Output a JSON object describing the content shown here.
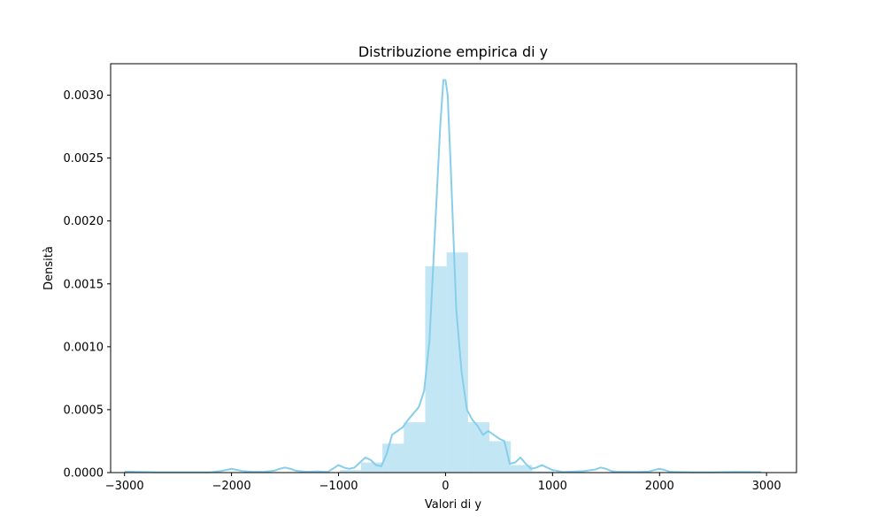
{
  "chart_data": {
    "type": "histogram",
    "title": "Distribuzione empirica di y",
    "xlabel": "Valori di y",
    "ylabel": "Densità",
    "xlim": [
      -3130,
      3280
    ],
    "ylim": [
      0,
      0.00325
    ],
    "x_ticks": [
      -3000,
      -2000,
      -1000,
      0,
      1000,
      2000,
      3000
    ],
    "x_tick_labels": [
      "−3000",
      "−2000",
      "−1000",
      "0",
      "1000",
      "2000",
      "3000"
    ],
    "y_ticks": [
      0,
      0.0005,
      0.001,
      0.0015,
      0.002,
      0.0025,
      0.003
    ],
    "y_tick_labels": [
      "0.0000",
      "0.0005",
      "0.0010",
      "0.0015",
      "0.0020",
      "0.0025",
      "0.0030"
    ],
    "grid": false,
    "histogram": {
      "color": "#87ceeb",
      "bin_edges": [
        -2990,
        -2790,
        -2590,
        -2390,
        -2190,
        -1990,
        -1790,
        -1590,
        -1390,
        -1190,
        -990,
        -790,
        -590,
        -390,
        -190,
        10,
        210,
        410,
        610,
        810,
        1010,
        1210,
        1410,
        1610,
        1810,
        2010,
        2210,
        2410,
        2610,
        2810,
        2990
      ],
      "values": [
        0,
        0,
        0,
        0,
        0,
        0,
        0,
        0,
        0,
        0,
        2e-05,
        8e-05,
        0.00023,
        0.0004,
        0.00164,
        0.00175,
        0.0004,
        0.00025,
        6e-05,
        1e-05,
        0,
        0,
        0,
        0,
        0,
        0,
        0,
        0,
        0,
        0
      ]
    },
    "kde": {
      "color": "#87ceeb",
      "x": [
        -3000,
        -2700,
        -2500,
        -2200,
        -2100,
        -2000,
        -1900,
        -1800,
        -1700,
        -1600,
        -1550,
        -1500,
        -1450,
        -1400,
        -1300,
        -1200,
        -1100,
        -1000,
        -950,
        -900,
        -850,
        -800,
        -750,
        -700,
        -650,
        -600,
        -550,
        -500,
        -450,
        -400,
        -350,
        -300,
        -250,
        -200,
        -150,
        -100,
        -50,
        -20,
        0,
        20,
        50,
        100,
        150,
        200,
        250,
        300,
        350,
        400,
        450,
        500,
        550,
        600,
        650,
        700,
        750,
        800,
        850,
        900,
        950,
        1000,
        1100,
        1200,
        1300,
        1400,
        1450,
        1500,
        1550,
        1600,
        1700,
        1800,
        1900,
        1950,
        2000,
        2050,
        2100,
        2300,
        2500,
        2700,
        2950
      ],
      "y": [
        8e-06,
        3e-06,
        3e-06,
        3e-06,
        1.2e-05,
        3e-05,
        1.2e-05,
        6e-06,
        6e-06,
        1.5e-05,
        3e-05,
        4e-05,
        3e-05,
        1.5e-05,
        6e-06,
        1e-05,
        5e-06,
        6e-05,
        4e-05,
        3e-05,
        4e-05,
        8e-05,
        0.00012,
        0.0001,
        6e-05,
        5e-05,
        0.00015,
        0.0003,
        0.00033,
        0.00036,
        0.00042,
        0.00047,
        0.00052,
        0.00065,
        0.00105,
        0.0019,
        0.00275,
        0.00312,
        0.00312,
        0.003,
        0.0024,
        0.0013,
        0.0008,
        0.0005,
        0.00042,
        0.00037,
        0.0003,
        0.00033,
        0.0003,
        0.00027,
        0.00025,
        7e-05,
        8e-05,
        0.00012,
        7e-05,
        3e-05,
        4e-05,
        6e-05,
        4e-05,
        2e-05,
        5e-06,
        8e-06,
        1.2e-05,
        2.5e-05,
        4e-05,
        3e-05,
        1.2e-05,
        6e-06,
        6e-06,
        5e-06,
        8e-06,
        2e-05,
        3e-05,
        2e-05,
        6e-06,
        3e-06,
        3e-06,
        5e-06,
        4e-06
      ]
    }
  }
}
